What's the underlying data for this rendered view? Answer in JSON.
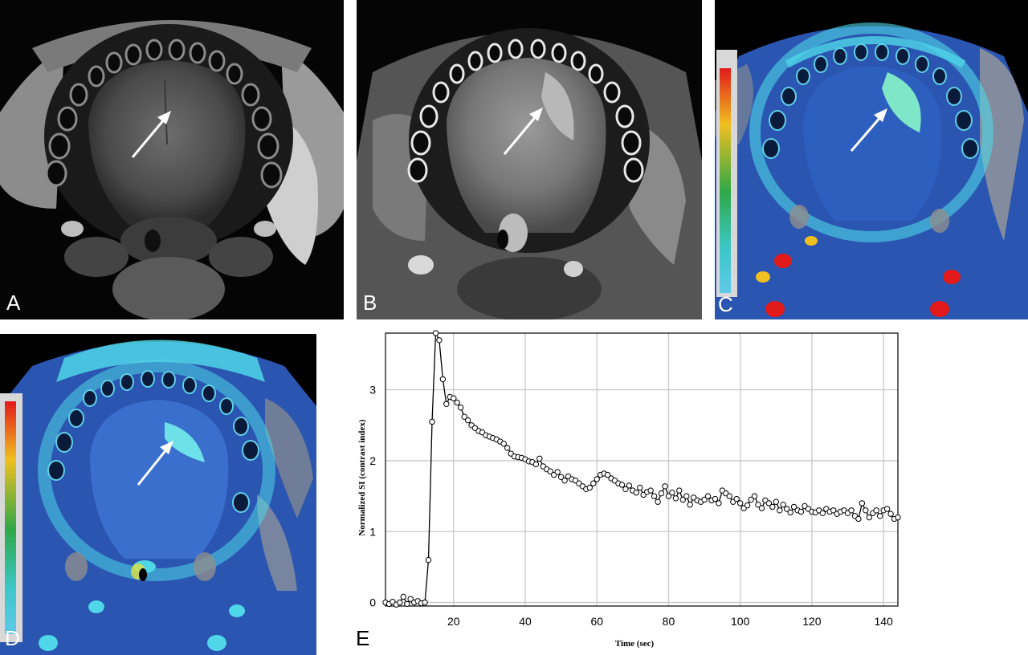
{
  "panels": {
    "a": {
      "label": "A"
    },
    "b": {
      "label": "B"
    },
    "c": {
      "label": "C"
    },
    "d": {
      "label": "D"
    },
    "e": {
      "label": "E"
    }
  },
  "colors": {
    "t2_bg": "#000000",
    "tongue_gray": "#5f5f5f",
    "perfusion_blue": "#2a55b0",
    "perfusion_cyan": "#4fd6e8",
    "hot_red": "#e21a1a",
    "arrow": "#ffffff"
  },
  "icons": {
    "arrow": "white-arrow-icon",
    "colorbar": "color-scale-bar"
  },
  "chart_data": {
    "type": "scatter",
    "title": "",
    "xlabel": "Time (sec)",
    "ylabel": "Normalized SI (contrast index)",
    "xlim": [
      1,
      144
    ],
    "ylim": [
      -0.05,
      3.8
    ],
    "xticks": [
      20,
      40,
      60,
      80,
      100,
      120,
      140
    ],
    "yticks": [
      0,
      1,
      2,
      3
    ],
    "grid": true,
    "marker": "open-circle",
    "connected": true,
    "series": [
      {
        "x": [
          1,
          2,
          3,
          4,
          5,
          6,
          7,
          8,
          9,
          10,
          11,
          12,
          13,
          14,
          15,
          16,
          17,
          18,
          19,
          20,
          21,
          22,
          23,
          24,
          25,
          26,
          27,
          28,
          29,
          30,
          31,
          32,
          33,
          34,
          35,
          36,
          37,
          38,
          39,
          40,
          41,
          42,
          43,
          44,
          45,
          46,
          47,
          48,
          49,
          50,
          51,
          52,
          53,
          54,
          55,
          56,
          57,
          58,
          59,
          60,
          61,
          62,
          63,
          64,
          65,
          66,
          67,
          68,
          69,
          70,
          71,
          72,
          73,
          74,
          75,
          76,
          77,
          78,
          79,
          80,
          81,
          82,
          83,
          84,
          85,
          86,
          87,
          88,
          89,
          90,
          91,
          92,
          93,
          94,
          95,
          96,
          97,
          98,
          99,
          100,
          101,
          102,
          103,
          104,
          105,
          106,
          107,
          108,
          109,
          110,
          111,
          112,
          113,
          114,
          115,
          116,
          117,
          118,
          119,
          120,
          121,
          122,
          123,
          124,
          125,
          126,
          127,
          128,
          129,
          130,
          131,
          132,
          133,
          134,
          135,
          136,
          137,
          138,
          139,
          140,
          141,
          142,
          143,
          144
        ],
        "y": [
          0.0,
          -0.02,
          0.01,
          -0.03,
          0.0,
          0.08,
          -0.02,
          0.05,
          0.0,
          0.02,
          -0.01,
          0.0,
          0.6,
          2.55,
          3.8,
          3.7,
          3.15,
          2.8,
          2.9,
          2.88,
          2.82,
          2.75,
          2.62,
          2.57,
          2.5,
          2.46,
          2.42,
          2.4,
          2.36,
          2.34,
          2.32,
          2.3,
          2.27,
          2.24,
          2.18,
          2.1,
          2.06,
          2.05,
          2.04,
          2.02,
          1.99,
          1.98,
          1.95,
          2.03,
          1.92,
          1.88,
          1.85,
          1.8,
          1.84,
          1.77,
          1.72,
          1.78,
          1.74,
          1.72,
          1.68,
          1.64,
          1.6,
          1.62,
          1.68,
          1.74,
          1.8,
          1.82,
          1.8,
          1.75,
          1.72,
          1.68,
          1.66,
          1.6,
          1.65,
          1.58,
          1.55,
          1.62,
          1.52,
          1.56,
          1.58,
          1.5,
          1.42,
          1.54,
          1.64,
          1.5,
          1.55,
          1.47,
          1.58,
          1.45,
          1.5,
          1.38,
          1.48,
          1.44,
          1.42,
          1.45,
          1.5,
          1.44,
          1.46,
          1.4,
          1.58,
          1.54,
          1.5,
          1.42,
          1.46,
          1.4,
          1.33,
          1.37,
          1.45,
          1.5,
          1.38,
          1.33,
          1.44,
          1.4,
          1.35,
          1.42,
          1.3,
          1.38,
          1.32,
          1.27,
          1.35,
          1.3,
          1.28,
          1.36,
          1.32,
          1.28,
          1.27,
          1.3,
          1.26,
          1.32,
          1.28,
          1.3,
          1.25,
          1.28,
          1.3,
          1.26,
          1.3,
          1.22,
          1.18,
          1.4,
          1.3,
          1.2,
          1.26,
          1.3,
          1.22,
          1.3,
          1.32,
          1.25,
          1.18,
          1.2
        ]
      }
    ]
  }
}
